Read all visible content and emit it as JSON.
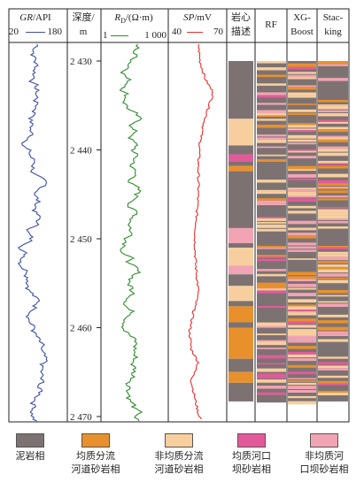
{
  "headers": {
    "gr": {
      "name": "GR",
      "unit": "/API",
      "min": "20",
      "max": "180"
    },
    "depth": {
      "line1": "深度/",
      "line2": "m"
    },
    "rd": {
      "name": "R",
      "sub": "D",
      "unit": "/(Ω·m)",
      "min": "1",
      "max": "1 000"
    },
    "sp": {
      "name": "SP",
      "unit": "/mV",
      "min": "40",
      "max": "70"
    },
    "core": {
      "line1": "岩心",
      "line2": "描述"
    },
    "rf": "RF",
    "xgb": {
      "line1": "XG-",
      "line2": "Boost"
    },
    "stack": {
      "line1": "Stac-",
      "line2": "king"
    }
  },
  "depth_ticks": [
    "2 430",
    "2 440",
    "2 450",
    "2 460",
    "2 470"
  ],
  "colors": {
    "mudstone": "#7d7272",
    "homog_channel": "#e8912c",
    "hetero_channel": "#f7cf9e",
    "homog_mouthbar": "#e35a9b",
    "hetero_mouthbar": "#f1a4b3",
    "gr_curve": "#3b4fa3",
    "rd_curve": "#2f8a2f",
    "sp_curve": "#e53030"
  },
  "legend": [
    {
      "key": "mudstone",
      "line1": "泥岩相",
      "line2": ""
    },
    {
      "key": "homog_channel",
      "line1": "均质分流",
      "line2": "河道砂岩相"
    },
    {
      "key": "hetero_channel",
      "line1": "非均质分流",
      "line2": "河道砂岩相"
    },
    {
      "key": "homog_mouthbar",
      "line1": "均质河口",
      "line2": "坝砂岩相"
    },
    {
      "key": "hetero_mouthbar",
      "line1": "非均质河",
      "line2": "口坝砂岩相"
    }
  ]
}
